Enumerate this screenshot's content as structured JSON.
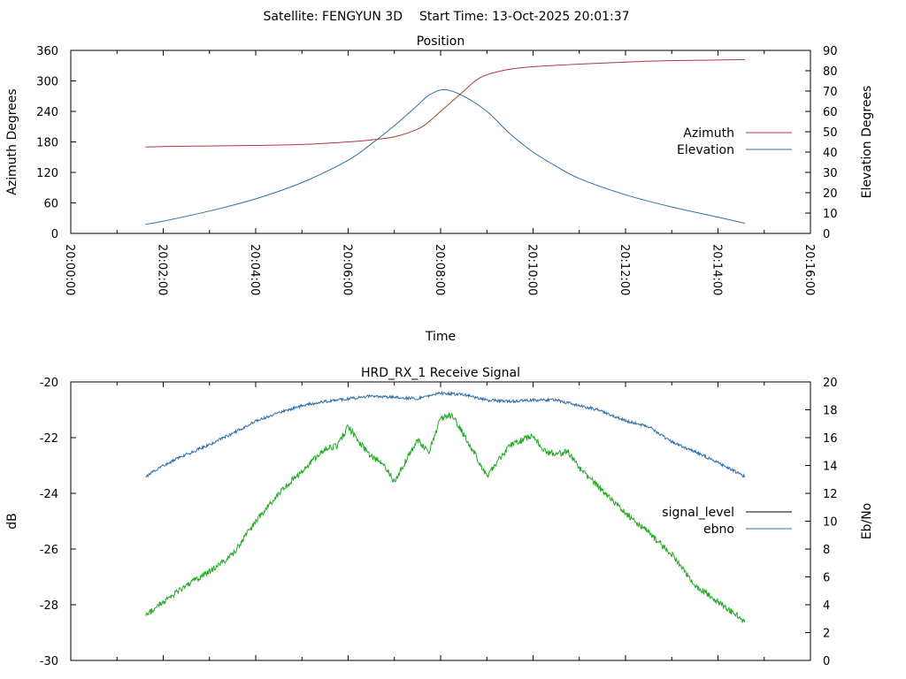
{
  "header": {
    "satellite": "Satellite: FENGYUN 3D",
    "start_time": "Start Time: 13-Oct-2025 20:01:37"
  },
  "chart_data": [
    {
      "type": "line",
      "title": "Position",
      "xlabel": "Time",
      "ylabel": "Azimuth Degrees",
      "y2label": "Elevation Degrees",
      "xlim": [
        "20:00:00",
        "20:16:00"
      ],
      "x_ticks": [
        "20:00:00",
        "20:02:00",
        "20:04:00",
        "20:06:00",
        "20:08:00",
        "20:10:00",
        "20:12:00",
        "20:14:00",
        "20:16:00"
      ],
      "ylim": [
        0,
        360
      ],
      "y_ticks": [
        "0",
        "60",
        "120",
        "180",
        "240",
        "300",
        "360"
      ],
      "y2lim": [
        0,
        90
      ],
      "y2_ticks": [
        "0",
        "10",
        "20",
        "30",
        "40",
        "50",
        "60",
        "70",
        "80",
        "90"
      ],
      "legend_position": "right",
      "series": [
        {
          "name": "Azimuth",
          "axis": "left",
          "color": "#b03a3a",
          "x": [
            "20:01:37",
            "20:02:00",
            "20:03:00",
            "20:04:00",
            "20:05:00",
            "20:06:00",
            "20:06:30",
            "20:07:00",
            "20:07:30",
            "20:07:45",
            "20:08:00",
            "20:08:15",
            "20:08:30",
            "20:08:45",
            "20:09:00",
            "20:09:30",
            "20:10:00",
            "20:11:00",
            "20:12:00",
            "20:13:00",
            "20:14:00",
            "20:14:35"
          ],
          "values": [
            170,
            171,
            172,
            173,
            175,
            180,
            184,
            190,
            205,
            220,
            240,
            260,
            280,
            300,
            312,
            323,
            328,
            333,
            337,
            340,
            341,
            342
          ]
        },
        {
          "name": "Elevation",
          "axis": "right",
          "color": "#2f6ea6",
          "x": [
            "20:01:37",
            "20:02:00",
            "20:03:00",
            "20:04:00",
            "20:05:00",
            "20:06:00",
            "20:06:30",
            "20:07:00",
            "20:07:30",
            "20:07:45",
            "20:08:05",
            "20:08:30",
            "20:09:00",
            "20:09:30",
            "20:10:00",
            "20:10:30",
            "20:11:00",
            "20:12:00",
            "20:13:00",
            "20:14:00",
            "20:14:35"
          ],
          "values": [
            4.5,
            6,
            11,
            17,
            25,
            36,
            44,
            53,
            63,
            68,
            70.7,
            67.5,
            60,
            49,
            40,
            33,
            27,
            19,
            13,
            8,
            5
          ]
        }
      ]
    },
    {
      "type": "line",
      "title": "HRD_RX_1 Receive Signal",
      "ylabel": "dB",
      "y2label": "Eb/No",
      "xlim": [
        "20:00:00",
        "20:16:00"
      ],
      "ylim": [
        -30,
        -20
      ],
      "y_ticks": [
        "-30",
        "-28",
        "-26",
        "-24",
        "-22",
        "-20"
      ],
      "y2lim": [
        0,
        20
      ],
      "y2_ticks": [
        "0",
        "2",
        "4",
        "6",
        "8",
        "10",
        "12",
        "14",
        "16",
        "18",
        "20"
      ],
      "legend_position": "right",
      "series": [
        {
          "name": "signal_level",
          "axis": "left",
          "legend_color": "#000000",
          "color": "#22aa22",
          "x": [
            "20:01:37",
            "20:02:00",
            "20:02:30",
            "20:03:00",
            "20:03:30",
            "20:04:00",
            "20:04:30",
            "20:05:00",
            "20:05:30",
            "20:05:45",
            "20:06:00",
            "20:06:15",
            "20:06:30",
            "20:06:45",
            "20:07:00",
            "20:07:15",
            "20:07:30",
            "20:07:45",
            "20:08:00",
            "20:08:15",
            "20:08:30",
            "20:08:45",
            "20:09:00",
            "20:09:15",
            "20:09:30",
            "20:09:45",
            "20:10:00",
            "20:10:15",
            "20:10:30",
            "20:10:45",
            "20:11:00",
            "20:11:30",
            "20:12:00",
            "20:12:30",
            "20:13:00",
            "20:13:30",
            "20:14:00",
            "20:14:35"
          ],
          "values": [
            -28.4,
            -27.9,
            -27.3,
            -26.8,
            -26.2,
            -25.0,
            -24.0,
            -23.2,
            -22.4,
            -22.3,
            -21.6,
            -22.2,
            -22.7,
            -22.9,
            -23.6,
            -22.8,
            -22.1,
            -22.5,
            -21.3,
            -21.2,
            -21.9,
            -22.6,
            -23.4,
            -22.8,
            -22.3,
            -22.1,
            -21.9,
            -22.5,
            -22.6,
            -22.5,
            -23.1,
            -23.9,
            -24.7,
            -25.4,
            -26.2,
            -27.3,
            -27.9,
            -28.6
          ]
        },
        {
          "name": "ebno",
          "axis": "right",
          "color": "#2f6ea6",
          "x": [
            "20:01:37",
            "20:02:00",
            "20:02:30",
            "20:03:00",
            "20:03:30",
            "20:04:00",
            "20:04:30",
            "20:05:00",
            "20:05:30",
            "20:06:00",
            "20:06:30",
            "20:07:00",
            "20:07:30",
            "20:08:00",
            "20:08:30",
            "20:09:00",
            "20:09:30",
            "20:10:00",
            "20:10:30",
            "20:11:00",
            "20:11:30",
            "20:12:00",
            "20:12:30",
            "20:13:00",
            "20:13:30",
            "20:14:00",
            "20:14:35"
          ],
          "values": [
            13.2,
            14.0,
            14.8,
            15.5,
            16.3,
            17.2,
            17.8,
            18.3,
            18.6,
            18.8,
            19.0,
            18.9,
            18.8,
            19.2,
            19.1,
            18.7,
            18.6,
            18.7,
            18.7,
            18.3,
            17.9,
            17.2,
            16.8,
            15.7,
            15.0,
            14.2,
            13.2
          ]
        }
      ]
    }
  ]
}
